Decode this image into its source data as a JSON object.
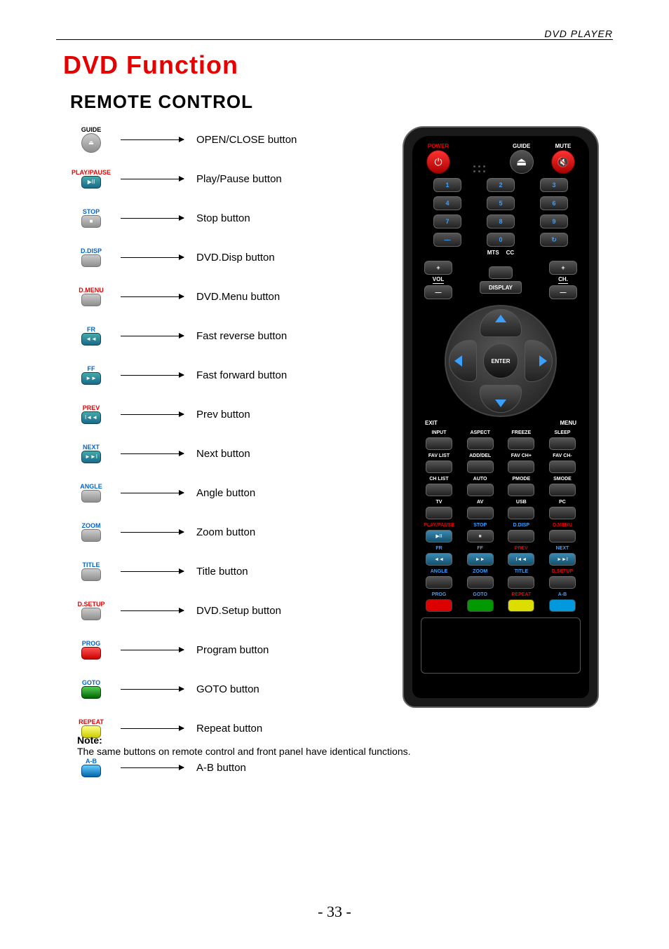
{
  "header": {
    "right": "DVD PLAYER"
  },
  "title": "DVD Function",
  "subtitle": "REMOTE CONTROL",
  "legend": [
    {
      "label": "GUIDE",
      "labelColor": "#000",
      "btnClass": "btn-gray btn-round",
      "glyph": "⏏",
      "desc": "OPEN/CLOSE button"
    },
    {
      "label": "PLAY/PAUSE",
      "labelColor": "#e60000",
      "btnClass": "btn-blue",
      "glyph": "▶II",
      "desc": "Play/Pause button"
    },
    {
      "label": "STOP",
      "labelColor": "#0066cc",
      "btnClass": "btn-gray",
      "glyph": "■",
      "desc": "Stop button"
    },
    {
      "label": "D.DISP",
      "labelColor": "#0066cc",
      "btnClass": "btn-gray",
      "glyph": "",
      "desc": "DVD.Disp button"
    },
    {
      "label": "D.MENU",
      "labelColor": "#e60000",
      "btnClass": "btn-gray",
      "glyph": "",
      "desc": "DVD.Menu button"
    },
    {
      "label": "FR",
      "labelColor": "#0066cc",
      "btnClass": "btn-blue",
      "glyph": "◄◄",
      "desc": "Fast reverse button"
    },
    {
      "label": "FF",
      "labelColor": "#0066cc",
      "btnClass": "btn-blue",
      "glyph": "►►",
      "desc": "Fast forward button"
    },
    {
      "label": "PREV",
      "labelColor": "#e60000",
      "btnClass": "btn-blue",
      "glyph": "I◄◄",
      "desc": "Prev button"
    },
    {
      "label": "NEXT",
      "labelColor": "#0066cc",
      "btnClass": "btn-blue",
      "glyph": "►►I",
      "desc": "Next button"
    },
    {
      "label": "ANGLE",
      "labelColor": "#0066cc",
      "btnClass": "btn-gray",
      "glyph": "",
      "desc": "Angle button"
    },
    {
      "label": "ZOOM",
      "labelColor": "#0066cc",
      "btnClass": "btn-gray",
      "glyph": "",
      "desc": "Zoom button"
    },
    {
      "label": "TITLE",
      "labelColor": "#0066cc",
      "btnClass": "btn-gray",
      "glyph": "",
      "desc": "Title button"
    },
    {
      "label": "D.SETUP",
      "labelColor": "#e60000",
      "btnClass": "btn-gray",
      "glyph": "",
      "desc": "DVD.Setup button"
    },
    {
      "label": "PROG",
      "labelColor": "#0066cc",
      "btnClass": "btn-red",
      "glyph": "",
      "desc": "Program button"
    },
    {
      "label": "GOTO",
      "labelColor": "#0066cc",
      "btnClass": "btn-green",
      "glyph": "",
      "desc": "GOTO button"
    },
    {
      "label": "REPEAT",
      "labelColor": "#e60000",
      "btnClass": "btn-yellow",
      "glyph": "",
      "desc": "Repeat button"
    },
    {
      "label": "A-B",
      "labelColor": "#0066cc",
      "btnClass": "btn-cyan",
      "glyph": "",
      "desc": "A-B button"
    }
  ],
  "remote": {
    "topRow": {
      "power": "POWER",
      "guide": "GUIDE",
      "mute": "MUTE"
    },
    "numpad": [
      [
        "1",
        "2",
        "3"
      ],
      [
        "4",
        "5",
        "6"
      ],
      [
        "7",
        "8",
        "9"
      ],
      [
        "—",
        "0",
        "↻"
      ]
    ],
    "mtsCc": {
      "mts": "MTS",
      "cc": "CC"
    },
    "volCh": {
      "vol": "VOL",
      "ch": "CH.",
      "plus": "+",
      "minus": "—",
      "display": "DISPLAY"
    },
    "dpad": {
      "enter": "ENTER",
      "exit": "EXIT",
      "menu": "MENU"
    },
    "row1": [
      "INPUT",
      "ASPECT",
      "FREEZE",
      "SLEEP"
    ],
    "row2": [
      "FAV LIST",
      "ADD/DEL",
      "FAV CH+",
      "FAV CH-"
    ],
    "row3": [
      "CH LIST",
      "AUTO",
      "PMODE",
      "SMODE"
    ],
    "row4": [
      "TV",
      "AV",
      "USB",
      "PC"
    ],
    "row5": {
      "labels": [
        "PLAY/PAUSE",
        "STOP",
        "D.DISP",
        "D.MENU"
      ],
      "labelType": [
        "r",
        "b",
        "b",
        "r"
      ],
      "glyphs": [
        "▶II",
        "■",
        "",
        ""
      ],
      "btnType": [
        "blue",
        "gray",
        "gray",
        "gray"
      ]
    },
    "row6": {
      "labels": [
        "FR",
        "FF",
        "PREV",
        "NEXT"
      ],
      "labelType": [
        "b",
        "b",
        "r",
        "b"
      ],
      "glyphs": [
        "◄◄",
        "►►",
        "I◄◄",
        "►►I"
      ],
      "btnType": [
        "blue",
        "blue",
        "blue",
        "blue"
      ]
    },
    "row7": {
      "labels": [
        "ANGLE",
        "ZOOM",
        "TITLE",
        "D.SETUP"
      ],
      "labelType": [
        "b",
        "b",
        "b",
        "r"
      ],
      "glyphs": [
        "",
        "",
        "",
        ""
      ],
      "btnType": [
        "gray",
        "gray",
        "gray",
        "gray"
      ]
    },
    "row8": {
      "labels": [
        "PROG",
        "GOTO",
        "REPEAT",
        "A-B"
      ],
      "labelType": [
        "b",
        "b",
        "r",
        "b"
      ],
      "colors": [
        "#d00",
        "#090",
        "#dd0",
        "#09d"
      ]
    }
  },
  "note": {
    "title": "Note:",
    "body": "The same buttons on remote control and front panel have identical functions."
  },
  "pageNum": "- 33 -",
  "colors": {
    "title": "#e60000",
    "accentBlue": "#3aa0ff"
  }
}
